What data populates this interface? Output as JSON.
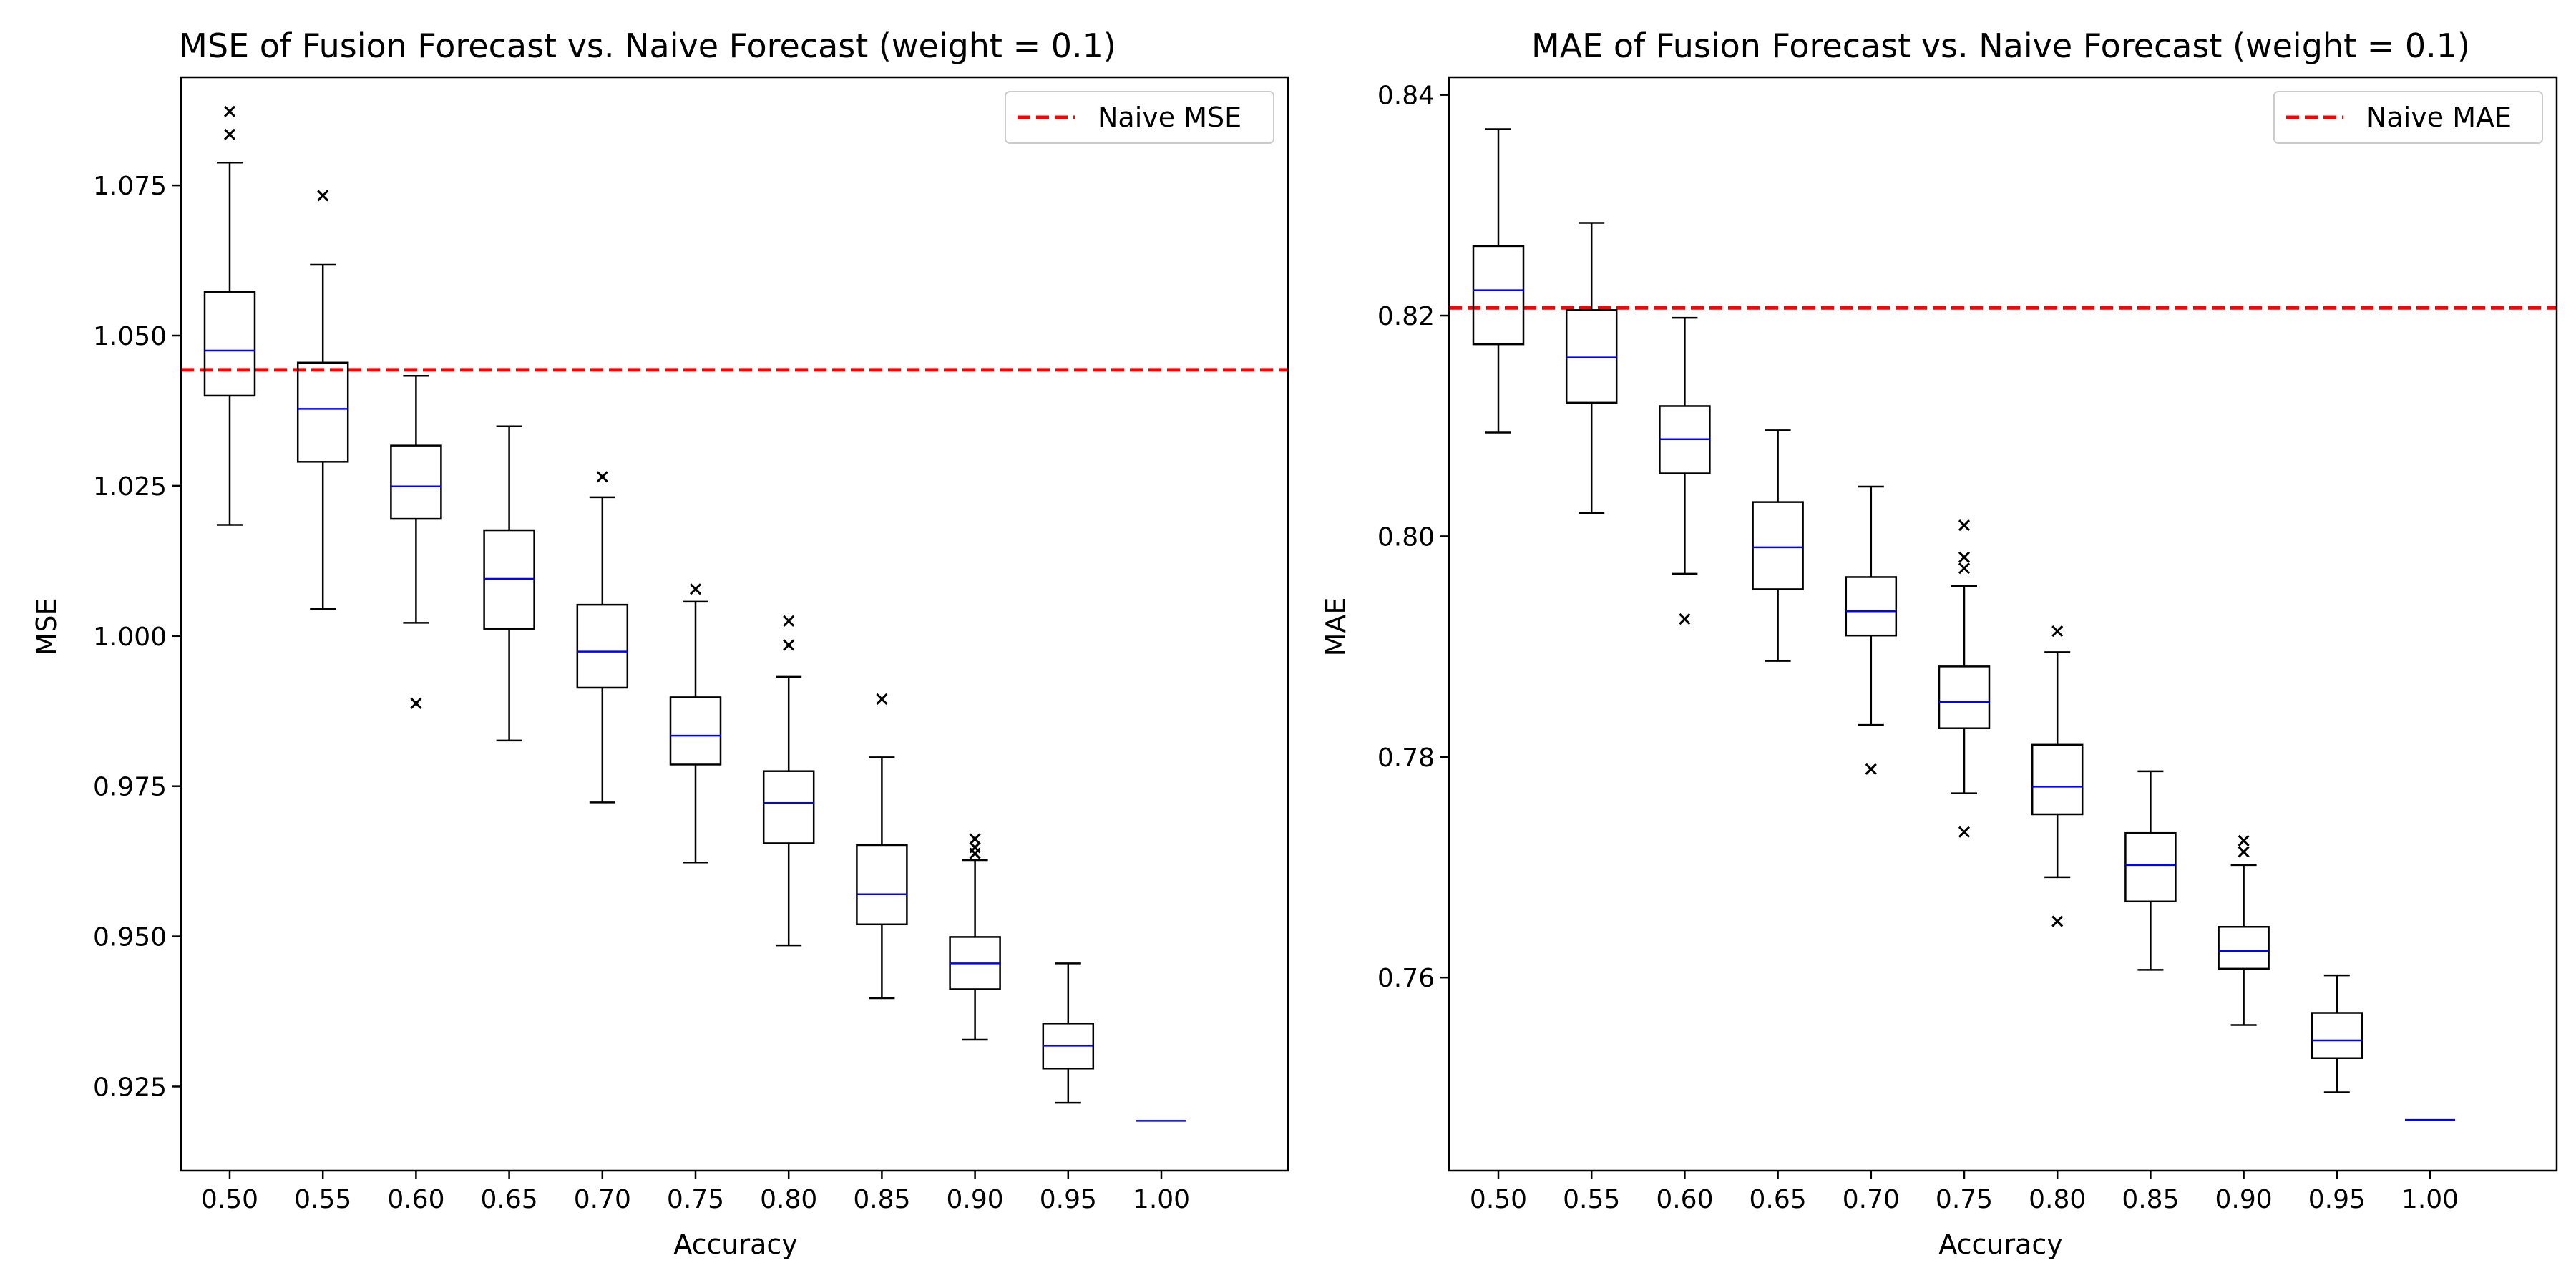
{
  "chart_data": [
    {
      "type": "boxplot",
      "title": "MSE of Fusion Forecast vs. Naive Forecast (weight = 0.1)",
      "xlabel": "Accuracy",
      "ylabel": "MSE",
      "categories": [
        "0.50",
        "0.55",
        "0.60",
        "0.65",
        "0.70",
        "0.75",
        "0.80",
        "0.85",
        "0.90",
        "0.95",
        "1.00"
      ],
      "ylim": [
        0.911,
        1.093
      ],
      "yticks": [
        0.925,
        0.95,
        0.975,
        1.0,
        1.025,
        1.05,
        1.075
      ],
      "ytick_labels": [
        "0.925",
        "0.950",
        "0.975",
        "1.000",
        "1.025",
        "1.050",
        "1.075"
      ],
      "boxes": [
        {
          "whislo": 1.0185,
          "q1": 1.04,
          "med": 1.0475,
          "q3": 1.0573,
          "whishi": 1.0788,
          "fliers": [
            1.0835,
            1.0873
          ]
        },
        {
          "whislo": 1.0045,
          "q1": 1.029,
          "med": 1.0378,
          "q3": 1.0455,
          "whishi": 1.0618,
          "fliers": [
            1.0733
          ]
        },
        {
          "whislo": 1.0022,
          "q1": 1.0195,
          "med": 1.0249,
          "q3": 1.0317,
          "whishi": 1.0433,
          "fliers": [
            0.9888
          ]
        },
        {
          "whislo": 0.9826,
          "q1": 1.0012,
          "med": 1.0095,
          "q3": 1.0176,
          "whishi": 1.0349,
          "fliers": []
        },
        {
          "whislo": 0.9723,
          "q1": 0.9914,
          "med": 0.9974,
          "q3": 1.0052,
          "whishi": 1.0231,
          "fliers": [
            1.0265
          ]
        },
        {
          "whislo": 0.9623,
          "q1": 0.9786,
          "med": 0.9834,
          "q3": 0.9898,
          "whishi": 1.0057,
          "fliers": [
            1.0078
          ]
        },
        {
          "whislo": 0.9485,
          "q1": 0.9655,
          "med": 0.9722,
          "q3": 0.9775,
          "whishi": 0.9932,
          "fliers": [
            0.9985,
            1.0025
          ]
        },
        {
          "whislo": 0.9397,
          "q1": 0.952,
          "med": 0.957,
          "q3": 0.9652,
          "whishi": 0.9798,
          "fliers": [
            0.9895
          ]
        },
        {
          "whislo": 0.9328,
          "q1": 0.9412,
          "med": 0.9455,
          "q3": 0.9499,
          "whishi": 0.9627,
          "fliers": [
            0.9638,
            0.9648,
            0.9662
          ]
        },
        {
          "whislo": 0.9223,
          "q1": 0.928,
          "med": 0.9318,
          "q3": 0.9355,
          "whishi": 0.9455,
          "fliers": []
        },
        {
          "whislo": 0.9193,
          "q1": 0.9193,
          "med": 0.9193,
          "q3": 0.9193,
          "whishi": 0.9193,
          "fliers": []
        }
      ],
      "reference_line": {
        "label": "Naive MSE",
        "value": 1.0443,
        "color": "#ff0000",
        "style": "dashed"
      },
      "box_color": "#000000",
      "median_color": "#0000ff",
      "legend_position": "top-right",
      "grid": false
    },
    {
      "type": "boxplot",
      "title": "MAE of Fusion Forecast vs. Naive Forecast (weight = 0.1)",
      "xlabel": "Accuracy",
      "ylabel": "MAE",
      "categories": [
        "0.50",
        "0.55",
        "0.60",
        "0.65",
        "0.70",
        "0.75",
        "0.80",
        "0.85",
        "0.90",
        "0.95",
        "1.00"
      ],
      "ylim": [
        0.7425,
        0.8416
      ],
      "yticks": [
        0.76,
        0.78,
        0.8,
        0.82,
        0.84
      ],
      "ytick_labels": [
        "0.76",
        "0.78",
        "0.80",
        "0.82",
        "0.84"
      ],
      "boxes": [
        {
          "whislo": 0.8094,
          "q1": 0.8174,
          "med": 0.8223,
          "q3": 0.8263,
          "whishi": 0.8369,
          "fliers": []
        },
        {
          "whislo": 0.8021,
          "q1": 0.8121,
          "med": 0.8162,
          "q3": 0.8205,
          "whishi": 0.8284,
          "fliers": []
        },
        {
          "whislo": 0.7966,
          "q1": 0.8057,
          "med": 0.8088,
          "q3": 0.8118,
          "whishi": 0.8198,
          "fliers": [
            0.7925
          ]
        },
        {
          "whislo": 0.7887,
          "q1": 0.7952,
          "med": 0.799,
          "q3": 0.8031,
          "whishi": 0.8096,
          "fliers": []
        },
        {
          "whislo": 0.7829,
          "q1": 0.791,
          "med": 0.7932,
          "q3": 0.7963,
          "whishi": 0.8045,
          "fliers": [
            0.7789
          ]
        },
        {
          "whislo": 0.7767,
          "q1": 0.7826,
          "med": 0.785,
          "q3": 0.7882,
          "whishi": 0.7955,
          "fliers": [
            0.7732,
            0.7971,
            0.7981,
            0.801
          ]
        },
        {
          "whislo": 0.7691,
          "q1": 0.7748,
          "med": 0.7773,
          "q3": 0.7811,
          "whishi": 0.7895,
          "fliers": [
            0.7651,
            0.7914
          ]
        },
        {
          "whislo": 0.7607,
          "q1": 0.7669,
          "med": 0.7702,
          "q3": 0.7731,
          "whishi": 0.7787,
          "fliers": []
        },
        {
          "whislo": 0.7557,
          "q1": 0.7608,
          "med": 0.7624,
          "q3": 0.7646,
          "whishi": 0.7702,
          "fliers": [
            0.7714,
            0.7724
          ]
        },
        {
          "whislo": 0.7496,
          "q1": 0.7527,
          "med": 0.7543,
          "q3": 0.7568,
          "whishi": 0.7602,
          "fliers": []
        },
        {
          "whislo": 0.7471,
          "q1": 0.7471,
          "med": 0.7471,
          "q3": 0.7471,
          "whishi": 0.7471,
          "fliers": []
        }
      ],
      "reference_line": {
        "label": "Naive MAE",
        "value": 0.8207,
        "color": "#ff0000",
        "style": "dashed"
      },
      "box_color": "#000000",
      "median_color": "#0000ff",
      "legend_position": "top-right",
      "grid": false
    }
  ]
}
